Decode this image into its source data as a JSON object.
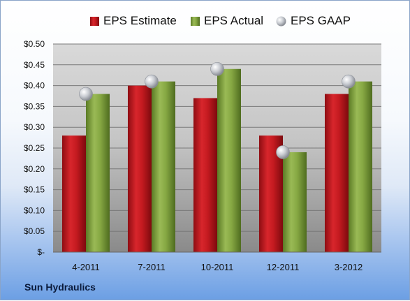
{
  "company": "Sun Hydraulics",
  "colors": {
    "estimate": "#c8161d",
    "actual": "#7da03c",
    "gaap": "#b8bcc4"
  },
  "chart_data": {
    "type": "bar",
    "title": "",
    "xlabel": "",
    "ylabel": "",
    "categories": [
      "4-2011",
      "7-2011",
      "10-2011",
      "12-2011",
      "3-2012"
    ],
    "series": [
      {
        "name": "EPS Estimate",
        "type": "bar",
        "values": [
          0.28,
          0.4,
          0.37,
          0.28,
          0.38
        ]
      },
      {
        "name": "EPS Actual",
        "type": "bar",
        "values": [
          0.38,
          0.41,
          0.44,
          0.24,
          0.41
        ]
      },
      {
        "name": "EPS GAAP",
        "type": "scatter",
        "values": [
          0.38,
          0.41,
          0.44,
          0.24,
          0.41
        ]
      }
    ],
    "ylim": [
      0,
      0.5
    ],
    "yticks": [
      "$-",
      "$0.05",
      "$0.10",
      "$0.15",
      "$0.20",
      "$0.25",
      "$0.30",
      "$0.35",
      "$0.40",
      "$0.45",
      "$0.50"
    ],
    "grid": true,
    "legend_position": "top"
  }
}
